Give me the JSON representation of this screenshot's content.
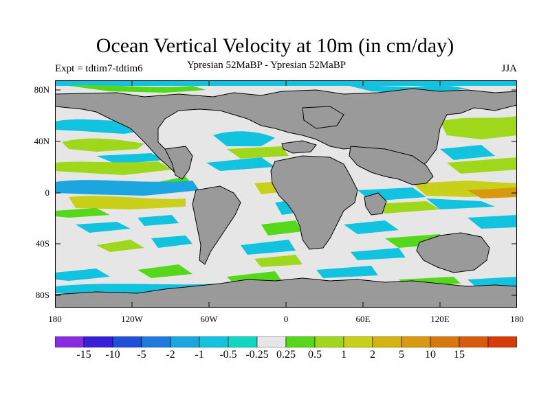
{
  "title": "Ocean Vertical Velocity at 10m (in cm/day)",
  "subtitle_left": "Expt = tdtim7-tdtim6",
  "subtitle_center": "Ypresian  52MaBP - Ypresian  52MaBP",
  "subtitle_right": "JJA",
  "lat_labels": [
    "80N",
    "40N",
    "0",
    "40S",
    "80S"
  ],
  "lon_labels": [
    "180",
    "120W",
    "60W",
    "0",
    "60E",
    "120E",
    "180"
  ],
  "colorbar": {
    "colors": [
      "#8a2be2",
      "#3a1fd8",
      "#1e4fd8",
      "#1f7ae0",
      "#1ca6e0",
      "#12c3df",
      "#10d8c0",
      "#e6e6e6",
      "#55d81a",
      "#9fd81a",
      "#c8d01a",
      "#d7b312",
      "#d8990f",
      "#d8770d",
      "#d85a0b",
      "#d83a08"
    ],
    "labels": [
      "-15",
      "-10",
      "-5",
      "-2",
      "-1",
      "-0.5",
      "-0.25",
      "0.25",
      "0.5",
      "1",
      "2",
      "5",
      "10",
      "15"
    ]
  },
  "map_colors": {
    "land": "#9a9a9a",
    "ocean_neutral": "#e6e6e6",
    "coast": "#000000"
  }
}
